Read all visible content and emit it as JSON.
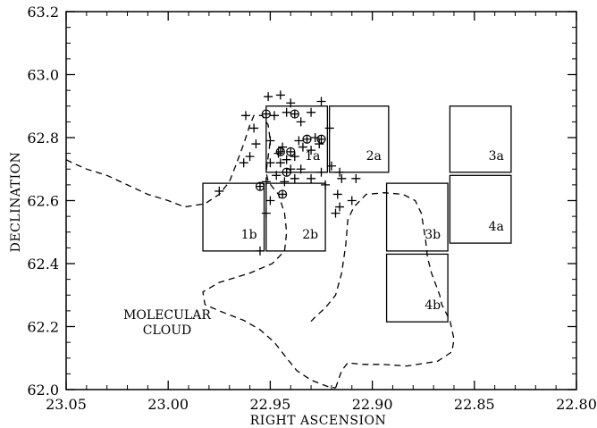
{
  "chart_data": {
    "type": "scatter",
    "title": "",
    "xlabel": "RIGHT ASCENSION",
    "ylabel": "DECLINATION",
    "xlim": [
      23.05,
      22.8
    ],
    "ylim": [
      62.0,
      63.2
    ],
    "xticks": [
      "23.05",
      "23.00",
      "22.95",
      "22.90",
      "22.85",
      "22.80"
    ],
    "xtick_values": [
      23.05,
      23.0,
      22.95,
      22.9,
      22.85,
      22.8
    ],
    "yticks": [
      "62.0",
      "62.2",
      "62.4",
      "62.6",
      "62.8",
      "63.0",
      "63.2"
    ],
    "ytick_values": [
      62.0,
      62.2,
      62.4,
      62.6,
      62.8,
      63.0,
      63.2
    ],
    "grid": false,
    "annotation": {
      "lines": [
        "MOLECULAR",
        "CLOUD"
      ],
      "ra": 22.995,
      "dec": 62.25
    },
    "fields": [
      {
        "label": "1a",
        "ra_min": 22.922,
        "ra_max": 22.952,
        "dec_min": 62.69,
        "dec_max": 62.9
      },
      {
        "label": "2a",
        "ra_min": 22.892,
        "ra_max": 22.921,
        "dec_min": 62.69,
        "dec_max": 62.9
      },
      {
        "label": "3a",
        "ra_min": 22.832,
        "ra_max": 22.862,
        "dec_min": 62.69,
        "dec_max": 62.9
      },
      {
        "label": "4a",
        "ra_min": 22.832,
        "ra_max": 22.862,
        "dec_min": 62.465,
        "dec_max": 62.68
      },
      {
        "label": "1b",
        "ra_min": 22.953,
        "ra_max": 22.983,
        "dec_min": 62.44,
        "dec_max": 62.655
      },
      {
        "label": "2b",
        "ra_min": 22.923,
        "ra_max": 22.952,
        "dec_min": 62.44,
        "dec_max": 62.655
      },
      {
        "label": "3b",
        "ra_min": 22.863,
        "ra_max": 22.893,
        "dec_min": 62.44,
        "dec_max": 62.655
      },
      {
        "label": "4b",
        "ra_min": 22.863,
        "ra_max": 22.893,
        "dec_min": 62.215,
        "dec_max": 62.43
      }
    ],
    "series": [
      {
        "marker": "plus",
        "points": [
          [
            22.951,
            62.93
          ],
          [
            22.945,
            62.935
          ],
          [
            22.94,
            62.91
          ],
          [
            22.925,
            62.915
          ],
          [
            22.962,
            62.87
          ],
          [
            22.958,
            62.83
          ],
          [
            22.957,
            62.78
          ],
          [
            22.963,
            62.72
          ],
          [
            22.96,
            62.74
          ],
          [
            22.948,
            62.87
          ],
          [
            22.942,
            62.88
          ],
          [
            22.935,
            62.85
          ],
          [
            22.93,
            62.88
          ],
          [
            22.921,
            62.83
          ],
          [
            22.928,
            62.8
          ],
          [
            22.936,
            62.79
          ],
          [
            22.95,
            62.79
          ],
          [
            22.946,
            62.75
          ],
          [
            22.944,
            62.77
          ],
          [
            22.942,
            62.73
          ],
          [
            22.938,
            62.74
          ],
          [
            22.934,
            62.77
          ],
          [
            22.93,
            62.76
          ],
          [
            22.926,
            62.78
          ],
          [
            22.94,
            62.7
          ],
          [
            22.947,
            62.68
          ],
          [
            22.952,
            62.66
          ],
          [
            22.943,
            62.66
          ],
          [
            22.938,
            62.67
          ],
          [
            22.93,
            62.67
          ],
          [
            22.925,
            62.69
          ],
          [
            22.92,
            62.71
          ],
          [
            22.916,
            62.69
          ],
          [
            22.915,
            62.67
          ],
          [
            22.908,
            62.67
          ],
          [
            22.923,
            62.65
          ],
          [
            22.917,
            62.62
          ],
          [
            22.916,
            62.58
          ],
          [
            22.918,
            62.56
          ],
          [
            22.91,
            62.6
          ],
          [
            22.935,
            62.7
          ],
          [
            22.95,
            62.6
          ],
          [
            22.952,
            62.56
          ],
          [
            22.955,
            62.44
          ],
          [
            22.975,
            62.63
          ],
          [
            22.95,
            62.72
          ],
          [
            22.945,
            62.72
          ]
        ]
      },
      {
        "marker": "circle-plus",
        "points": [
          [
            22.952,
            62.875
          ],
          [
            22.938,
            62.875
          ],
          [
            22.945,
            62.755
          ],
          [
            22.94,
            62.755
          ],
          [
            22.932,
            62.795
          ],
          [
            22.925,
            62.795
          ],
          [
            22.942,
            62.69
          ],
          [
            22.944,
            62.62
          ],
          [
            22.955,
            62.645
          ]
        ]
      }
    ],
    "cloud_contour": [
      [
        23.05,
        62.73
      ],
      [
        23.047,
        62.72
      ],
      [
        23.04,
        62.7
      ],
      [
        23.03,
        62.68
      ],
      [
        23.02,
        62.65
      ],
      [
        23.01,
        62.62
      ],
      [
        23.0,
        62.6
      ],
      [
        22.992,
        62.58
      ],
      [
        22.982,
        62.59
      ],
      [
        22.975,
        62.62
      ],
      [
        22.97,
        62.66
      ],
      [
        22.967,
        62.71
      ],
      [
        22.963,
        62.78
      ],
      [
        22.96,
        62.84
      ],
      [
        22.958,
        62.87
      ],
      [
        22.954,
        62.87
      ],
      [
        22.951,
        62.84
      ],
      [
        22.95,
        62.79
      ],
      [
        22.951,
        62.74
      ],
      [
        22.952,
        62.69
      ],
      [
        22.951,
        62.66
      ],
      [
        22.946,
        62.62
      ],
      [
        22.943,
        62.56
      ],
      [
        22.942,
        62.5
      ],
      [
        22.943,
        62.44
      ],
      [
        22.949,
        62.4
      ],
      [
        22.96,
        62.37
      ],
      [
        22.975,
        62.34
      ],
      [
        22.983,
        62.31
      ],
      [
        22.982,
        62.27
      ],
      [
        22.975,
        62.25
      ],
      [
        22.963,
        62.22
      ],
      [
        22.955,
        62.19
      ],
      [
        22.948,
        62.15
      ],
      [
        22.942,
        62.1
      ],
      [
        22.937,
        62.06
      ],
      [
        22.93,
        62.03
      ],
      [
        22.922,
        62.01
      ],
      [
        22.918,
        62.005
      ]
    ],
    "cloud_contour_2": [
      [
        22.918,
        62.005
      ],
      [
        22.915,
        62.06
      ],
      [
        22.912,
        62.085
      ],
      [
        22.905,
        62.08
      ],
      [
        22.895,
        62.08
      ],
      [
        22.883,
        62.075
      ],
      [
        22.868,
        62.09
      ],
      [
        22.861,
        62.12
      ],
      [
        22.86,
        62.16
      ],
      [
        22.862,
        62.22
      ],
      [
        22.866,
        62.27
      ],
      [
        22.867,
        62.3
      ],
      [
        22.871,
        62.37
      ],
      [
        22.873,
        62.42
      ],
      [
        22.874,
        62.48
      ],
      [
        22.876,
        62.56
      ],
      [
        22.879,
        62.6
      ],
      [
        22.885,
        62.62
      ],
      [
        22.894,
        62.625
      ],
      [
        22.903,
        62.62
      ],
      [
        22.909,
        62.58
      ],
      [
        22.912,
        62.54
      ],
      [
        22.913,
        62.46
      ],
      [
        22.915,
        62.37
      ],
      [
        22.918,
        62.3
      ],
      [
        22.923,
        62.26
      ],
      [
        22.928,
        62.23
      ],
      [
        22.931,
        62.21
      ]
    ]
  }
}
